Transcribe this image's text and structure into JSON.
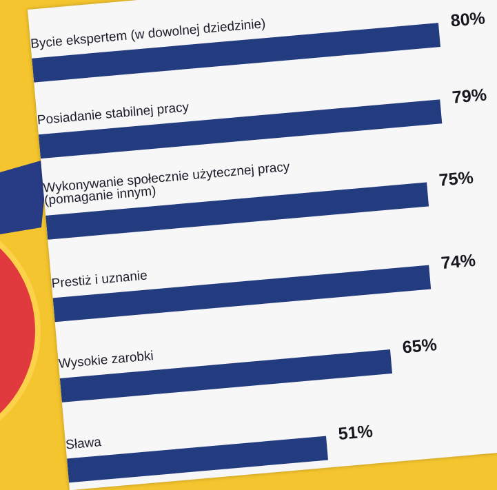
{
  "chart_data": {
    "type": "bar",
    "orientation": "horizontal",
    "title": "",
    "xlabel": "",
    "ylabel": "",
    "xlim": [
      0,
      100
    ],
    "grid": false,
    "categories": [
      [
        "Bycie ekspertem (w dowolnej dziedzinie)"
      ],
      [
        "Posiadanie stabilnej pracy"
      ],
      [
        "Wykonywanie społecznie użytecznej pracy",
        "(pomaganie innym)"
      ],
      [
        "Prestiż i uznanie"
      ],
      [
        "Wysokie zarobki"
      ],
      [
        "Sława"
      ]
    ],
    "values": [
      80,
      79,
      75,
      74,
      65,
      51
    ],
    "value_labels": [
      "80%",
      "79%",
      "75%",
      "74%",
      "65%",
      "51%"
    ],
    "bar_color": "#233b7f"
  },
  "colors": {
    "background": "#f4c52e",
    "card": "#f7f7f8",
    "circle": "#e0393e",
    "circle_ring": "#fbd24a",
    "navy_shape": "#283c86"
  }
}
